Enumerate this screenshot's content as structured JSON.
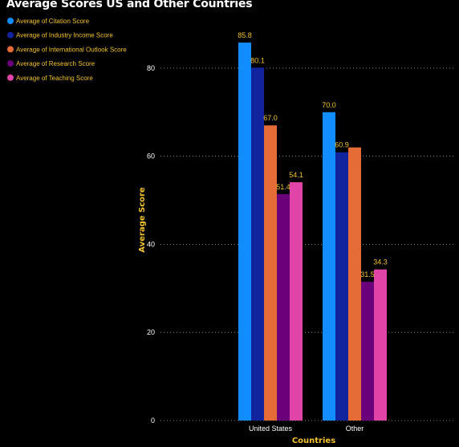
{
  "title": "Average Scores US and Other Countries",
  "colors": {
    "background": "#000000",
    "title": "#ffffff",
    "text_accent": "#f2c230",
    "tick_text": "#ffffff",
    "gridline": "#8a8a8a"
  },
  "chart_data": {
    "type": "bar",
    "title": "Average Scores US and Other Countries",
    "xlabel": "Countries",
    "ylabel": "Average Score",
    "categories": [
      "United States",
      "Other"
    ],
    "ylim": [
      0,
      90
    ],
    "yticks": [
      0,
      20,
      40,
      60,
      80
    ],
    "grid": true,
    "legend_position": "top-left",
    "series": [
      {
        "name": "Average of Citation Score",
        "values": [
          85.8,
          70.0
        ],
        "color": "#118dff"
      },
      {
        "name": "Average of Industry Income Score",
        "values": [
          80.1,
          60.9
        ],
        "color": "#12239e"
      },
      {
        "name": "Average of International Outlook Score",
        "values": [
          67.0,
          62.0
        ],
        "color": "#e66c37"
      },
      {
        "name": "Average of Research Score",
        "values": [
          51.4,
          31.5
        ],
        "color": "#6b007b"
      },
      {
        "name": "Average of Teaching Score",
        "values": [
          54.1,
          34.3
        ],
        "color": "#e044a7"
      }
    ],
    "data_labels": [
      [
        "85.8",
        "70.0"
      ],
      [
        "80.1",
        "60.9"
      ],
      [
        "67.0",
        ""
      ],
      [
        "51.4",
        "31.5"
      ],
      [
        "54.1",
        "34.3"
      ]
    ]
  }
}
